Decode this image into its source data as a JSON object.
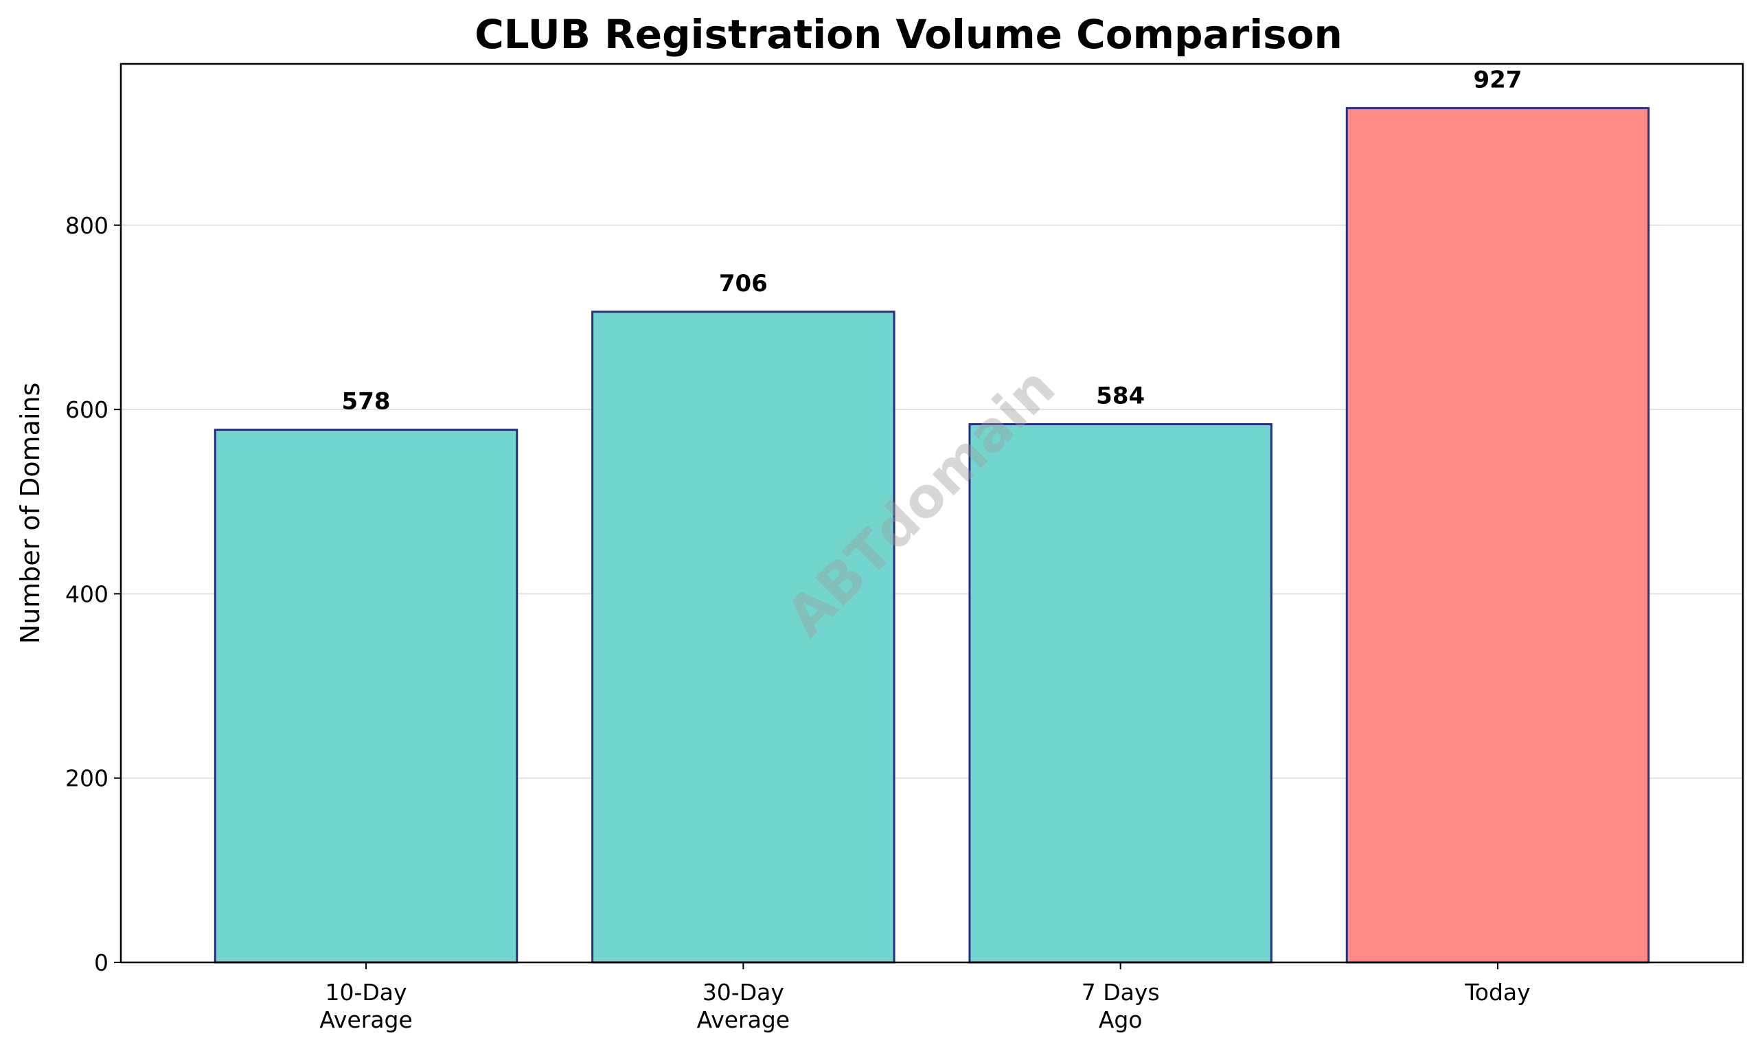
{
  "chart_data": {
    "type": "bar",
    "title": "CLUB Registration Volume Comparison",
    "xlabel": "",
    "ylabel": "Number of Domains",
    "categories": [
      [
        "10-Day",
        "Average"
      ],
      [
        "30-Day",
        "Average"
      ],
      [
        "7 Days",
        "Ago"
      ],
      [
        "Today"
      ]
    ],
    "values": [
      578,
      706,
      584,
      927
    ],
    "value_labels": [
      "578",
      "706",
      "584",
      "927"
    ],
    "bar_colors": [
      "#72d6cf",
      "#72d6cf",
      "#72d6cf",
      "#ff8a88"
    ],
    "bar_edge_color": "#27307f",
    "ylim": [
      0,
      975
    ],
    "yticks": [
      0,
      200,
      400,
      600,
      800
    ],
    "grid": "horizontal",
    "legend": "none"
  },
  "watermark": "ABTdomain"
}
